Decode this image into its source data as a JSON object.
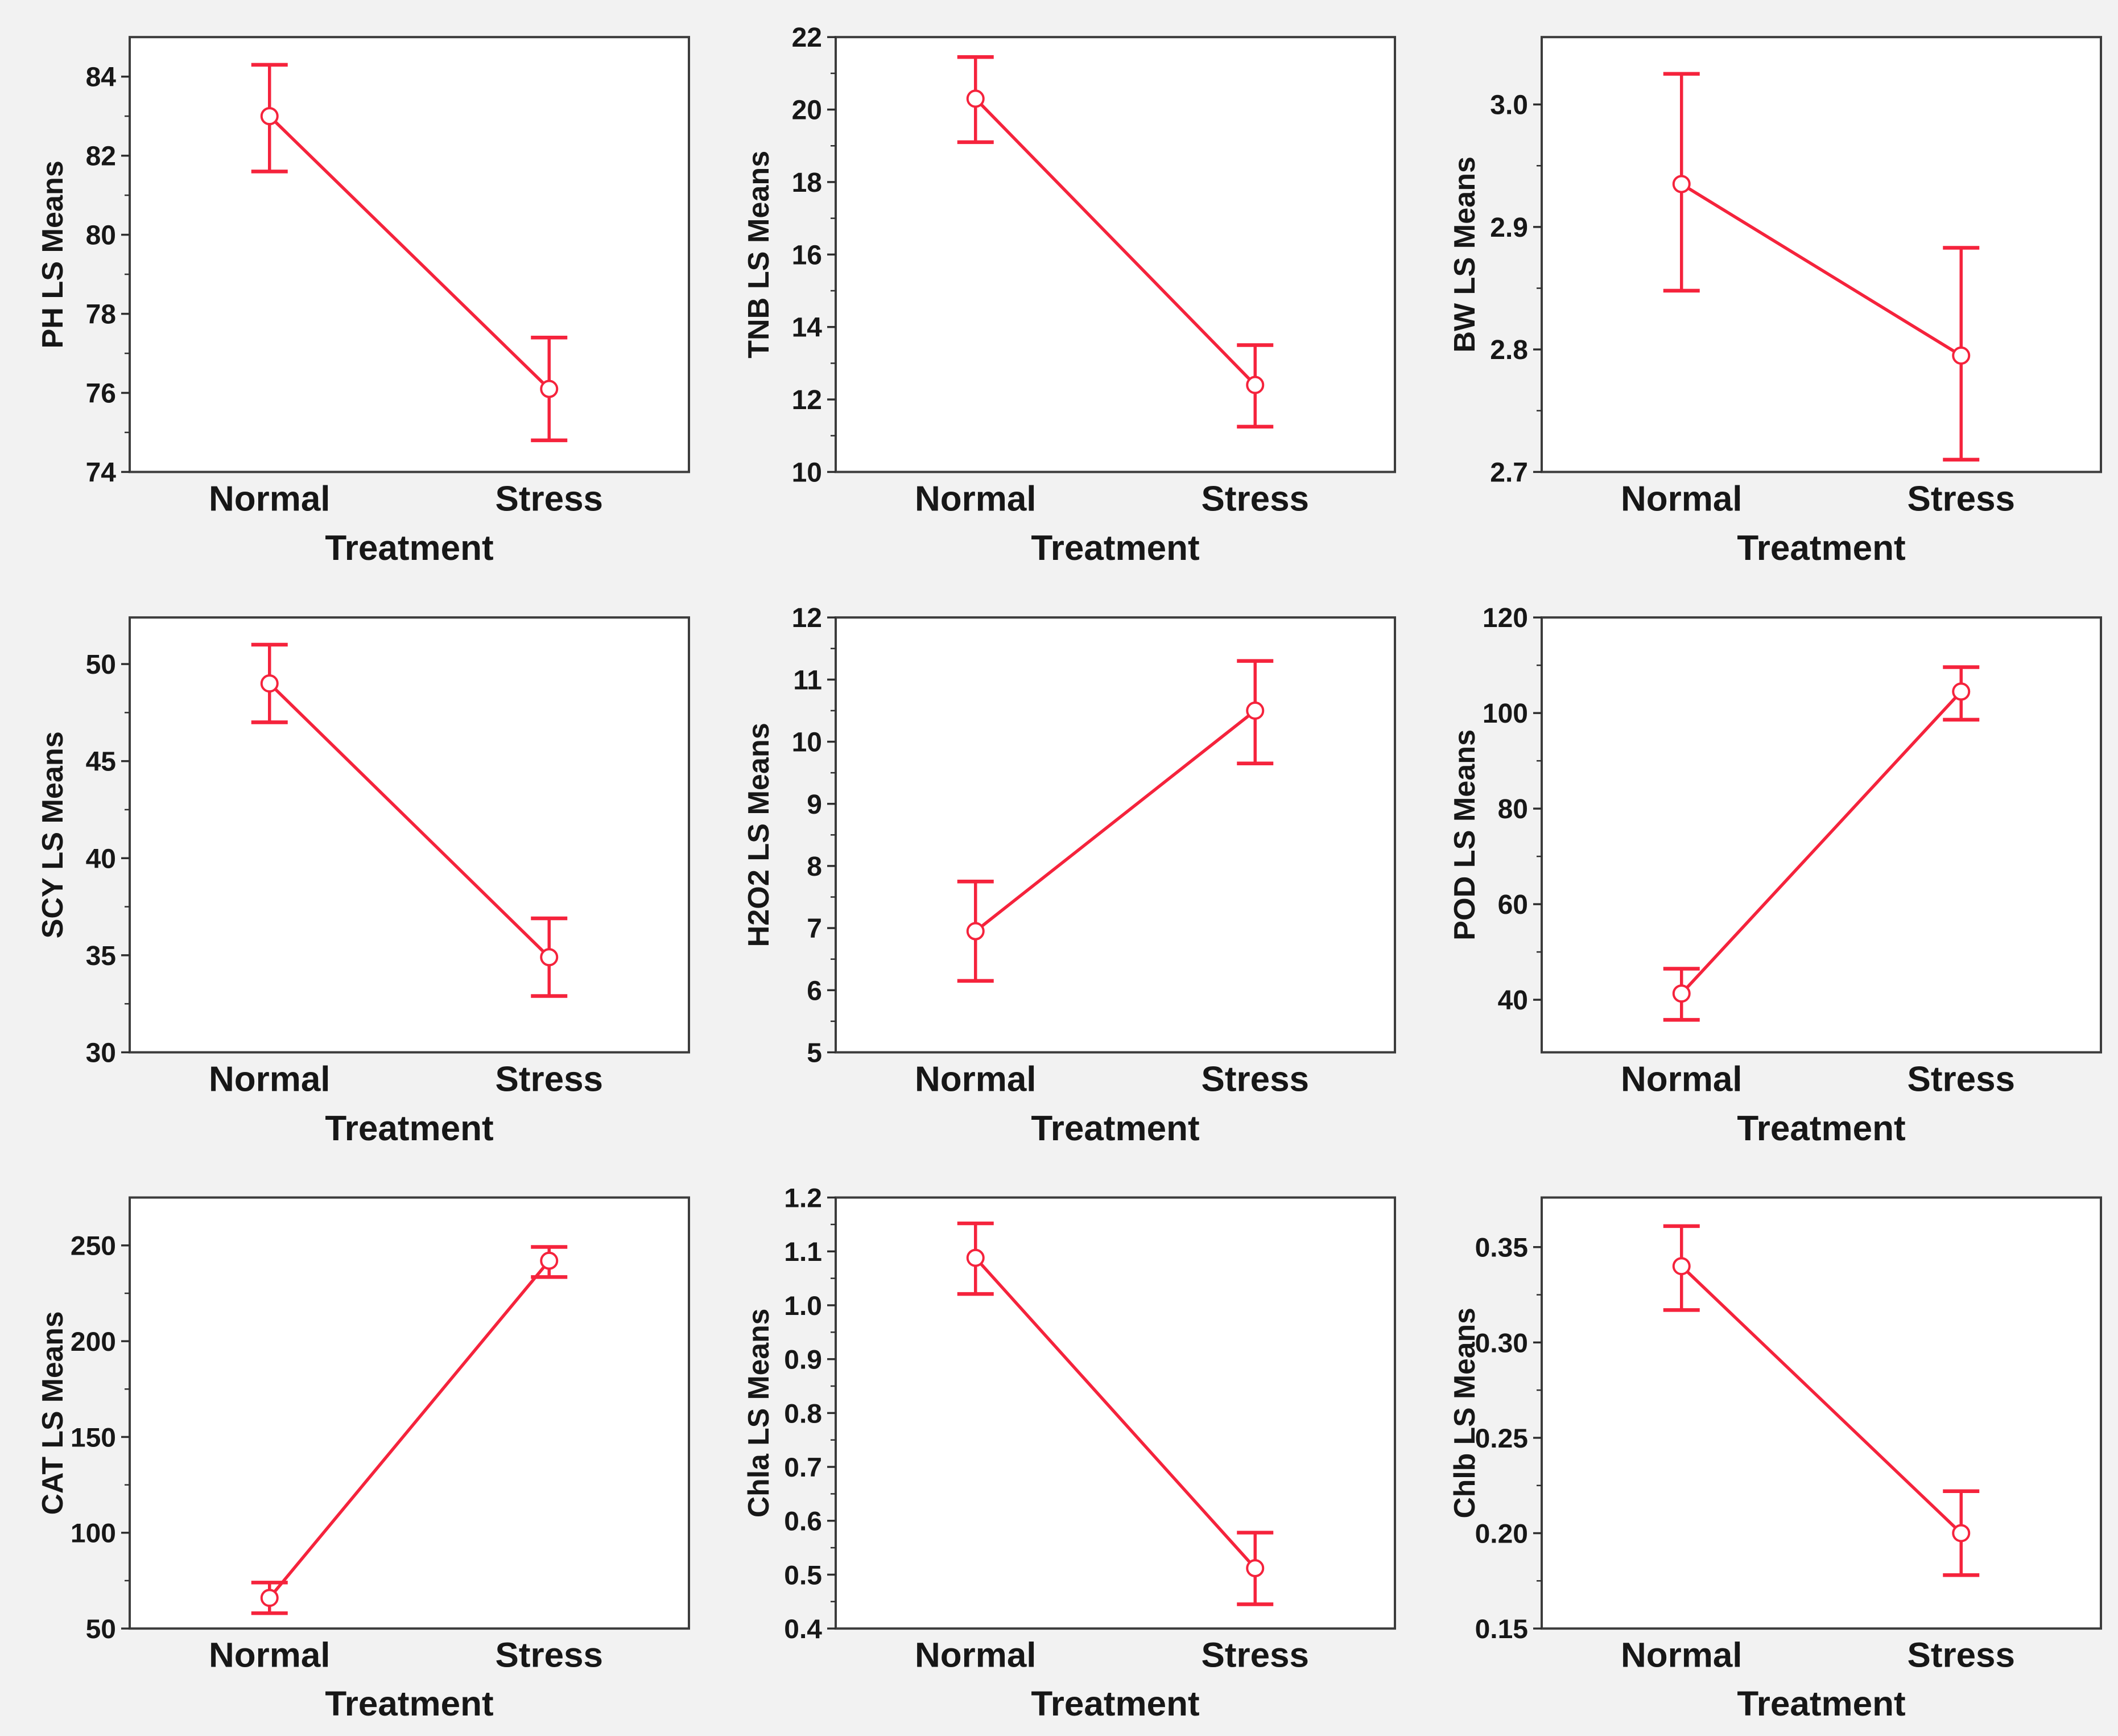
{
  "page": {
    "background_color": "#f2f2f2",
    "plot_background_color": "#ffffff",
    "axis_color": "#3c3c3c",
    "tick_color": "#2e2e2e",
    "text_color": "#171717",
    "accent_color": "#f5233c"
  },
  "figure_grid": {
    "rows": 3,
    "columns": 3
  },
  "chart_data": [
    {
      "type": "line",
      "title": "",
      "xlabel": "Treatment",
      "ylabel": "PH LS Means",
      "categories": [
        "Normal",
        "Stress"
      ],
      "yticks": [
        74,
        76,
        78,
        80,
        82,
        84
      ],
      "ytick_labels": [
        "74",
        "76",
        "78",
        "80",
        "82",
        "84"
      ],
      "ylim": [
        74,
        85.0
      ],
      "grid": false,
      "legend": "none",
      "marker": "open-circle",
      "error_bars": true,
      "series": [
        {
          "name": "LS Mean",
          "values": [
            83.0,
            76.1
          ],
          "ci_low": [
            81.6,
            74.8
          ],
          "ci_high": [
            84.3,
            77.4
          ]
        }
      ]
    },
    {
      "type": "line",
      "title": "",
      "xlabel": "Treatment",
      "ylabel": "TNB LS Means",
      "categories": [
        "Normal",
        "Stress"
      ],
      "yticks": [
        10,
        12,
        14,
        16,
        18,
        20,
        22
      ],
      "ytick_labels": [
        "10",
        "12",
        "14",
        "16",
        "18",
        "20",
        "22"
      ],
      "ylim": [
        10,
        22
      ],
      "grid": false,
      "legend": "none",
      "marker": "open-circle",
      "error_bars": true,
      "series": [
        {
          "name": "LS Mean",
          "values": [
            20.3,
            12.4
          ],
          "ci_low": [
            19.1,
            11.25
          ],
          "ci_high": [
            21.45,
            13.5
          ]
        }
      ]
    },
    {
      "type": "line",
      "title": "",
      "xlabel": "Treatment",
      "ylabel": "BW LS Means",
      "categories": [
        "Normal",
        "Stress"
      ],
      "yticks": [
        2.7,
        2.8,
        2.9,
        3.0
      ],
      "ytick_labels": [
        "2.7",
        "2.8",
        "2.9",
        "3.0"
      ],
      "ylim": [
        2.7,
        3.055
      ],
      "grid": false,
      "legend": "none",
      "marker": "open-circle",
      "error_bars": true,
      "series": [
        {
          "name": "LS Mean",
          "values": [
            2.935,
            2.795
          ],
          "ci_low": [
            2.848,
            2.71
          ],
          "ci_high": [
            3.025,
            2.883
          ]
        }
      ]
    },
    {
      "type": "line",
      "title": "",
      "xlabel": "Treatment",
      "ylabel": "SCY LS Means",
      "categories": [
        "Normal",
        "Stress"
      ],
      "yticks": [
        30,
        35,
        40,
        45,
        50
      ],
      "ytick_labels": [
        "30",
        "35",
        "40",
        "45",
        "50"
      ],
      "ylim": [
        30,
        52.4
      ],
      "grid": false,
      "legend": "none",
      "marker": "open-circle",
      "error_bars": true,
      "series": [
        {
          "name": "LS Mean",
          "values": [
            49.0,
            34.9
          ],
          "ci_low": [
            47.0,
            32.9
          ],
          "ci_high": [
            51.0,
            36.9
          ]
        }
      ]
    },
    {
      "type": "line",
      "title": "",
      "xlabel": "Treatment",
      "ylabel": "H2O2 LS Means",
      "categories": [
        "Normal",
        "Stress"
      ],
      "yticks": [
        5,
        6,
        7,
        8,
        9,
        10,
        11,
        12
      ],
      "ytick_labels": [
        "5",
        "6",
        "7",
        "8",
        "9",
        "10",
        "11",
        "12"
      ],
      "ylim": [
        5,
        12
      ],
      "grid": false,
      "legend": "none",
      "marker": "open-circle",
      "error_bars": true,
      "series": [
        {
          "name": "LS Mean",
          "values": [
            6.95,
            10.5
          ],
          "ci_low": [
            6.15,
            9.65
          ],
          "ci_high": [
            7.75,
            11.3
          ]
        }
      ]
    },
    {
      "type": "line",
      "title": "",
      "xlabel": "Treatment",
      "ylabel": "POD LS Means",
      "categories": [
        "Normal",
        "Stress"
      ],
      "yticks": [
        40,
        60,
        80,
        100,
        120
      ],
      "ytick_labels": [
        "40",
        "60",
        "80",
        "100",
        "120"
      ],
      "ylim": [
        29,
        120
      ],
      "grid": false,
      "legend": "none",
      "marker": "open-circle",
      "error_bars": true,
      "series": [
        {
          "name": "LS Mean",
          "values": [
            41.3,
            104.5
          ],
          "ci_low": [
            35.8,
            98.6
          ],
          "ci_high": [
            46.5,
            109.6
          ]
        }
      ]
    },
    {
      "type": "line",
      "title": "",
      "xlabel": "Treatment",
      "ylabel": "CAT LS Means",
      "categories": [
        "Normal",
        "Stress"
      ],
      "yticks": [
        50,
        100,
        150,
        200,
        250
      ],
      "ytick_labels": [
        "50",
        "100",
        "150",
        "200",
        "250"
      ],
      "ylim": [
        50,
        275
      ],
      "grid": false,
      "legend": "none",
      "marker": "open-circle",
      "error_bars": true,
      "series": [
        {
          "name": "LS Mean",
          "values": [
            66,
            242
          ],
          "ci_low": [
            58,
            233.5
          ],
          "ci_high": [
            74,
            249.2
          ]
        }
      ]
    },
    {
      "type": "line",
      "title": "",
      "xlabel": "Treatment",
      "ylabel": "Chla LS Means",
      "categories": [
        "Normal",
        "Stress"
      ],
      "yticks": [
        0.4,
        0.5,
        0.6,
        0.7,
        0.8,
        0.9,
        1.0,
        1.1,
        1.2
      ],
      "ytick_labels": [
        "0.4",
        "0.5",
        "0.6",
        "0.7",
        "0.8",
        "0.9",
        "1.0",
        "1.1",
        "1.2"
      ],
      "ylim": [
        0.4,
        1.2
      ],
      "grid": false,
      "legend": "none",
      "marker": "open-circle",
      "error_bars": true,
      "series": [
        {
          "name": "LS Mean",
          "values": [
            1.088,
            0.512
          ],
          "ci_low": [
            1.021,
            0.445
          ],
          "ci_high": [
            1.152,
            0.578
          ]
        }
      ]
    },
    {
      "type": "line",
      "title": "",
      "xlabel": "Treatment",
      "ylabel": "Chlb LS Means",
      "categories": [
        "Normal",
        "Stress"
      ],
      "yticks": [
        0.15,
        0.2,
        0.25,
        0.3,
        0.35
      ],
      "ytick_labels": [
        "0.15",
        "0.20",
        "0.25",
        "0.30",
        "0.35"
      ],
      "ylim": [
        0.15,
        0.376
      ],
      "grid": false,
      "legend": "none",
      "marker": "open-circle",
      "error_bars": true,
      "series": [
        {
          "name": "LS Mean",
          "values": [
            0.34,
            0.2
          ],
          "ci_low": [
            0.317,
            0.178
          ],
          "ci_high": [
            0.361,
            0.222
          ]
        }
      ]
    }
  ]
}
